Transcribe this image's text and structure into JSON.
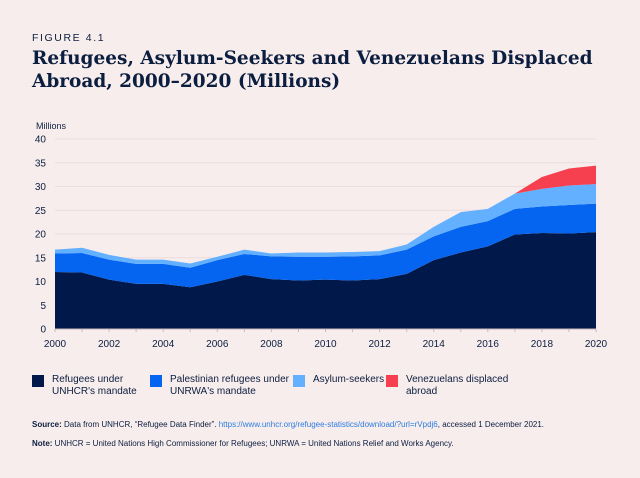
{
  "figure_label": "FIGURE 4.1",
  "title": "Refugees, Asylum-Seekers and Venezuelans Displaced Abroad, 2000–2020 (Millions)",
  "chart_data": {
    "type": "area",
    "stacked": true,
    "ylabel": "Millions",
    "ylim": [
      0,
      40
    ],
    "yticks": [
      0,
      5,
      10,
      15,
      20,
      25,
      30,
      35,
      40
    ],
    "xlim": [
      2000,
      2020
    ],
    "xticks": [
      2000,
      2002,
      2004,
      2006,
      2008,
      2010,
      2012,
      2014,
      2016,
      2018,
      2020
    ],
    "grid": "horizontal",
    "legend_placement": "bottom",
    "x": [
      2000,
      2001,
      2002,
      2003,
      2004,
      2005,
      2006,
      2007,
      2008,
      2009,
      2010,
      2011,
      2012,
      2013,
      2014,
      2015,
      2016,
      2017,
      2018,
      2019,
      2020
    ],
    "series": [
      {
        "name": "Refugees under UNHCR's mandate",
        "color": "#00194a",
        "values": [
          12.0,
          11.9,
          10.4,
          9.5,
          9.5,
          8.8,
          10.0,
          11.4,
          10.5,
          10.2,
          10.4,
          10.2,
          10.5,
          11.6,
          14.5,
          16.1,
          17.4,
          19.9,
          20.2,
          20.1,
          20.4
        ]
      },
      {
        "name": "Palestinian refugees under UNRWA's mandate",
        "color": "#0565f0",
        "values": [
          3.9,
          4.1,
          4.2,
          4.2,
          4.2,
          4.1,
          4.5,
          4.4,
          4.8,
          5.0,
          4.8,
          5.1,
          5.0,
          5.1,
          5.0,
          5.4,
          5.3,
          5.4,
          5.6,
          6.0,
          6.0
        ]
      },
      {
        "name": "Asylum-seekers",
        "color": "#62b0ff",
        "values": [
          0.8,
          1.1,
          1.0,
          0.9,
          0.9,
          0.9,
          0.7,
          0.9,
          0.6,
          0.9,
          0.9,
          0.9,
          0.9,
          1.1,
          2.0,
          3.1,
          2.6,
          3.2,
          3.7,
          4.1,
          4.1
        ]
      },
      {
        "name": "Venezuelans displaced abroad",
        "color": "#f7404f",
        "values": [
          0,
          0,
          0,
          0,
          0,
          0,
          0,
          0,
          0,
          0,
          0,
          0,
          0,
          0,
          0,
          0,
          0,
          0,
          2.5,
          3.6,
          3.9
        ]
      }
    ]
  },
  "legend": [
    {
      "line1": "Refugees under",
      "line2": "UNHCR's mandate"
    },
    {
      "line1": "Palestinian refugees under",
      "line2": "UNRWA's mandate"
    },
    {
      "line1": "Asylum-seekers",
      "line2": ""
    },
    {
      "line1": "Venezuelans displaced",
      "line2": "abroad"
    }
  ],
  "source": {
    "label": "Source:",
    "text": " Data from UNHCR, “Refugee Data Finder”. ",
    "link": "https://www.unhcr.org/refugee-statistics/download/?url=rVpdj6",
    "after": ", accessed 1 December 2021."
  },
  "note": {
    "label": "Note:",
    "text": " UNHCR = United Nations High Commissioner for Refugees; UNRWA = United Nations Relief and Works Agency."
  }
}
